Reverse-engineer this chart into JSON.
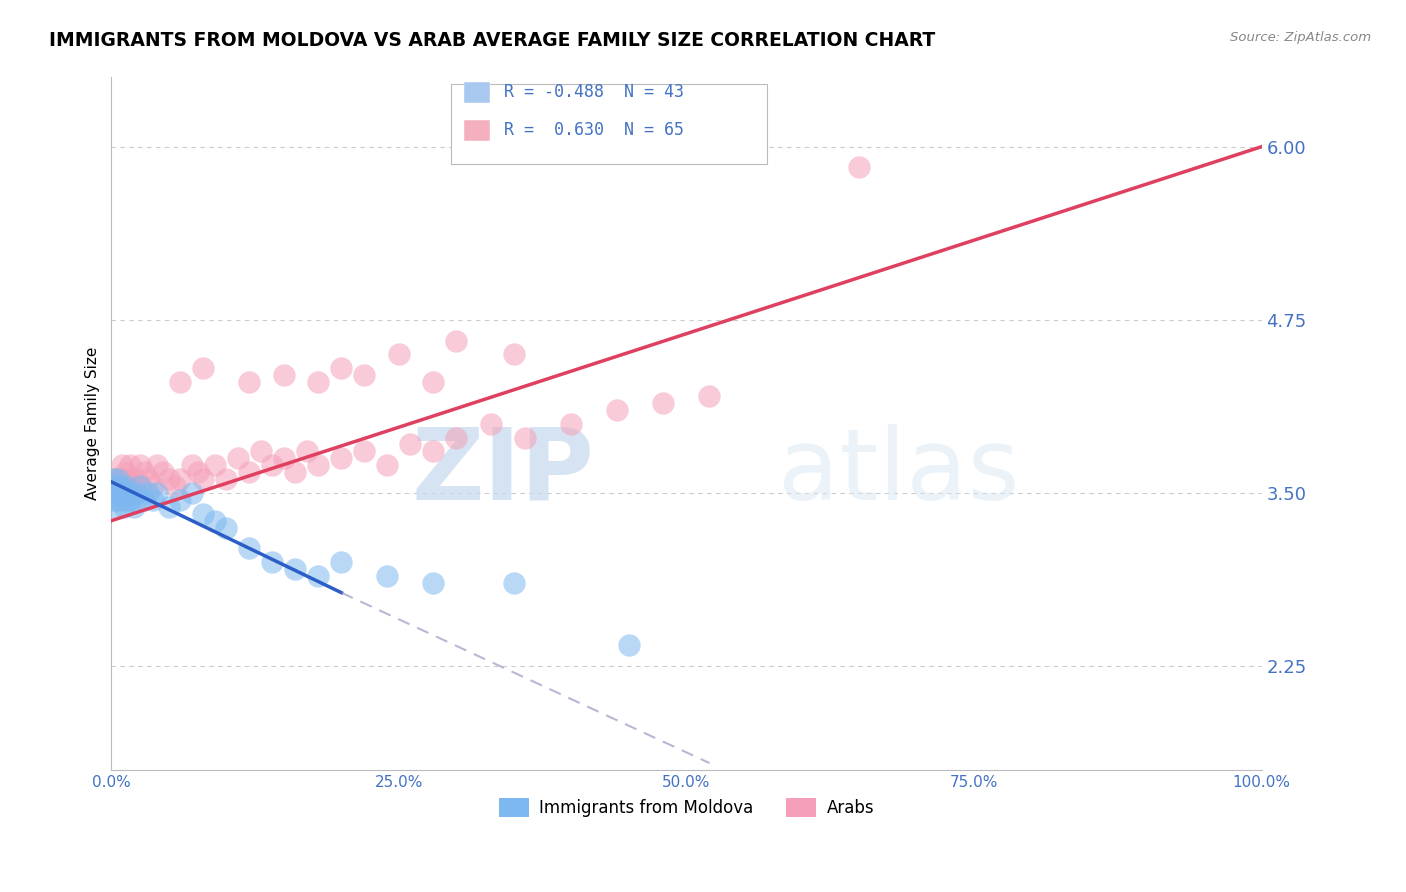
{
  "title": "IMMIGRANTS FROM MOLDOVA VS ARAB AVERAGE FAMILY SIZE CORRELATION CHART",
  "source": "Source: ZipAtlas.com",
  "ylabel": "Average Family Size",
  "yticks": [
    2.25,
    3.5,
    4.75,
    6.0
  ],
  "xlim": [
    0.0,
    100.0
  ],
  "ylim": [
    1.5,
    6.5
  ],
  "legend_entries": [
    {
      "label": "R = -0.488  N = 43",
      "color": "#A8C8F0"
    },
    {
      "label": "R =  0.630  N = 65",
      "color": "#F5B0C0"
    }
  ],
  "series_moldova": {
    "color": "#7EB8F0",
    "x": [
      0.1,
      0.15,
      0.2,
      0.25,
      0.3,
      0.35,
      0.4,
      0.45,
      0.5,
      0.6,
      0.7,
      0.8,
      0.9,
      1.0,
      1.1,
      1.2,
      1.3,
      1.4,
      1.5,
      1.6,
      1.8,
      2.0,
      2.2,
      2.5,
      2.8,
      3.2,
      3.6,
      4.0,
      5.0,
      6.0,
      7.0,
      8.0,
      9.0,
      10.0,
      12.0,
      14.0,
      16.0,
      18.0,
      20.0,
      24.0,
      28.0,
      35.0,
      45.0
    ],
    "y": [
      3.55,
      3.6,
      3.5,
      3.45,
      3.4,
      3.5,
      3.55,
      3.45,
      3.5,
      3.6,
      3.5,
      3.55,
      3.45,
      3.5,
      3.4,
      3.5,
      3.55,
      3.5,
      3.45,
      3.5,
      3.45,
      3.4,
      3.5,
      3.55,
      3.45,
      3.5,
      3.45,
      3.5,
      3.4,
      3.45,
      3.5,
      3.35,
      3.3,
      3.25,
      3.1,
      3.0,
      2.95,
      2.9,
      3.0,
      2.9,
      2.85,
      2.85,
      2.4
    ]
  },
  "series_arab": {
    "color": "#F5A0B8",
    "x": [
      0.1,
      0.2,
      0.3,
      0.4,
      0.5,
      0.6,
      0.7,
      0.8,
      0.9,
      1.0,
      1.1,
      1.2,
      1.3,
      1.4,
      1.5,
      1.6,
      1.8,
      2.0,
      2.2,
      2.5,
      2.8,
      3.2,
      3.6,
      4.0,
      4.5,
      5.0,
      5.5,
      6.0,
      7.0,
      7.5,
      8.0,
      9.0,
      10.0,
      11.0,
      12.0,
      13.0,
      14.0,
      15.0,
      16.0,
      17.0,
      18.0,
      20.0,
      22.0,
      24.0,
      26.0,
      28.0,
      30.0,
      33.0,
      36.0,
      40.0,
      44.0,
      48.0,
      52.0,
      20.0,
      18.0,
      22.0,
      25.0,
      15.0,
      12.0,
      8.0,
      6.0,
      35.0,
      30.0,
      28.0,
      65.0
    ],
    "y": [
      3.5,
      3.55,
      3.6,
      3.5,
      3.45,
      3.5,
      3.6,
      3.5,
      3.7,
      3.55,
      3.6,
      3.65,
      3.5,
      3.55,
      3.6,
      3.7,
      3.5,
      3.55,
      3.6,
      3.7,
      3.65,
      3.6,
      3.55,
      3.7,
      3.65,
      3.6,
      3.55,
      3.6,
      3.7,
      3.65,
      3.6,
      3.7,
      3.6,
      3.75,
      3.65,
      3.8,
      3.7,
      3.75,
      3.65,
      3.8,
      3.7,
      3.75,
      3.8,
      3.7,
      3.85,
      3.8,
      3.9,
      4.0,
      3.9,
      4.0,
      4.1,
      4.15,
      4.2,
      4.4,
      4.3,
      4.35,
      4.5,
      4.35,
      4.3,
      4.4,
      4.3,
      4.5,
      4.6,
      4.3,
      5.85
    ]
  },
  "trend_moldova": {
    "color": "#2B5FC7",
    "x_start": 0.0,
    "y_start": 3.58,
    "x_end": 20.0,
    "y_end": 2.78,
    "x_dash_end": 52.0,
    "y_dash_end": 1.55
  },
  "trend_arab": {
    "color": "#E04060",
    "x_start": 0.0,
    "y_start": 3.3,
    "x_end": 100.0,
    "y_end": 6.0
  },
  "watermark_zip": "ZIP",
  "watermark_atlas": "atlas",
  "axis_color": "#4472C4",
  "tick_color": "#4472C4",
  "title_fontsize": 13.5,
  "label_fontsize": 11
}
